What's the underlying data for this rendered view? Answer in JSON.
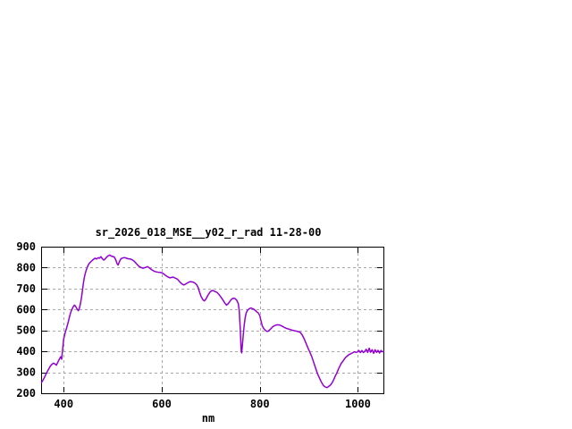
{
  "window": {
    "background": "#ffffff"
  },
  "chart_data": {
    "type": "line",
    "title": "sr_2026_018_MSE__y02_r_rad 11-28-00",
    "xlabel": "nm",
    "ylabel": "",
    "xlim": [
      354,
      1052
    ],
    "ylim": [
      200,
      900
    ],
    "x_ticks": [
      400,
      600,
      800,
      1000
    ],
    "y_ticks": [
      200,
      300,
      400,
      500,
      600,
      700,
      800,
      900
    ],
    "grid": true,
    "legend": "none",
    "colors": {
      "line": "#9400d3",
      "grid": "#a8a8a8",
      "border": "#000000",
      "text": "#000000"
    },
    "series": [
      {
        "name": "sr_2026_018_MSE__y02_r_rad 11-28-00",
        "points": [
          [
            355,
            252
          ],
          [
            358,
            263
          ],
          [
            361,
            276
          ],
          [
            364,
            292
          ],
          [
            367,
            305
          ],
          [
            370,
            318
          ],
          [
            373,
            330
          ],
          [
            376,
            338
          ],
          [
            379,
            344
          ],
          [
            382,
            340
          ],
          [
            385,
            334
          ],
          [
            388,
            348
          ],
          [
            391,
            362
          ],
          [
            394,
            374
          ],
          [
            396,
            363
          ],
          [
            398,
            410
          ],
          [
            400,
            458
          ],
          [
            402,
            478
          ],
          [
            404,
            496
          ],
          [
            406,
            511
          ],
          [
            408,
            528
          ],
          [
            410,
            546
          ],
          [
            412,
            566
          ],
          [
            414,
            583
          ],
          [
            416,
            596
          ],
          [
            418,
            606
          ],
          [
            420,
            615
          ],
          [
            422,
            621
          ],
          [
            424,
            616
          ],
          [
            426,
            608
          ],
          [
            428,
            600
          ],
          [
            430,
            594
          ],
          [
            432,
            606
          ],
          [
            434,
            626
          ],
          [
            436,
            652
          ],
          [
            438,
            686
          ],
          [
            440,
            722
          ],
          [
            442,
            752
          ],
          [
            444,
            772
          ],
          [
            446,
            788
          ],
          [
            448,
            801
          ],
          [
            450,
            812
          ],
          [
            452,
            820
          ],
          [
            455,
            827
          ],
          [
            458,
            834
          ],
          [
            461,
            840
          ],
          [
            464,
            845
          ],
          [
            467,
            841
          ],
          [
            470,
            847
          ],
          [
            473,
            845
          ],
          [
            476,
            852
          ],
          [
            479,
            842
          ],
          [
            482,
            836
          ],
          [
            485,
            843
          ],
          [
            488,
            851
          ],
          [
            491,
            857
          ],
          [
            494,
            860
          ],
          [
            497,
            855
          ],
          [
            500,
            853
          ],
          [
            503,
            851
          ],
          [
            506,
            838
          ],
          [
            509,
            818
          ],
          [
            511,
            812
          ],
          [
            514,
            830
          ],
          [
            517,
            843
          ],
          [
            520,
            846
          ],
          [
            524,
            848
          ],
          [
            528,
            845
          ],
          [
            532,
            842
          ],
          [
            536,
            841
          ],
          [
            540,
            837
          ],
          [
            544,
            830
          ],
          [
            548,
            820
          ],
          [
            553,
            807
          ],
          [
            558,
            800
          ],
          [
            562,
            797
          ],
          [
            566,
            800
          ],
          [
            571,
            805
          ],
          [
            575,
            798
          ],
          [
            580,
            789
          ],
          [
            585,
            782
          ],
          [
            590,
            779
          ],
          [
            595,
            777
          ],
          [
            600,
            776
          ],
          [
            604,
            770
          ],
          [
            608,
            762
          ],
          [
            613,
            755
          ],
          [
            617,
            751
          ],
          [
            620,
            753
          ],
          [
            623,
            755
          ],
          [
            627,
            750
          ],
          [
            632,
            745
          ],
          [
            636,
            734
          ],
          [
            641,
            722
          ],
          [
            645,
            717
          ],
          [
            649,
            722
          ],
          [
            653,
            728
          ],
          [
            658,
            733
          ],
          [
            662,
            732
          ],
          [
            666,
            729
          ],
          [
            671,
            719
          ],
          [
            674,
            706
          ],
          [
            677,
            684
          ],
          [
            680,
            663
          ],
          [
            684,
            646
          ],
          [
            687,
            641
          ],
          [
            690,
            650
          ],
          [
            694,
            668
          ],
          [
            698,
            682
          ],
          [
            702,
            691
          ],
          [
            706,
            689
          ],
          [
            710,
            685
          ],
          [
            714,
            679
          ],
          [
            718,
            668
          ],
          [
            722,
            655
          ],
          [
            726,
            641
          ],
          [
            729,
            629
          ],
          [
            732,
            621
          ],
          [
            735,
            627
          ],
          [
            738,
            636
          ],
          [
            741,
            646
          ],
          [
            744,
            652
          ],
          [
            747,
            654
          ],
          [
            750,
            651
          ],
          [
            753,
            644
          ],
          [
            756,
            628
          ],
          [
            758,
            595
          ],
          [
            760,
            510
          ],
          [
            762,
            400
          ],
          [
            763,
            393
          ],
          [
            764,
            420
          ],
          [
            766,
            475
          ],
          [
            768,
            525
          ],
          [
            770,
            560
          ],
          [
            772,
            583
          ],
          [
            775,
            597
          ],
          [
            778,
            603
          ],
          [
            782,
            607
          ],
          [
            785,
            604
          ],
          [
            788,
            601
          ],
          [
            791,
            595
          ],
          [
            794,
            589
          ],
          [
            797,
            583
          ],
          [
            800,
            570
          ],
          [
            802,
            550
          ],
          [
            805,
            521
          ],
          [
            808,
            509
          ],
          [
            812,
            499
          ],
          [
            815,
            495
          ],
          [
            818,
            498
          ],
          [
            822,
            507
          ],
          [
            826,
            517
          ],
          [
            830,
            523
          ],
          [
            835,
            527
          ],
          [
            840,
            526
          ],
          [
            845,
            521
          ],
          [
            850,
            514
          ],
          [
            855,
            509
          ],
          [
            860,
            506
          ],
          [
            866,
            501
          ],
          [
            872,
            498
          ],
          [
            877,
            495
          ],
          [
            882,
            492
          ],
          [
            886,
            480
          ],
          [
            890,
            462
          ],
          [
            894,
            440
          ],
          [
            898,
            417
          ],
          [
            902,
            396
          ],
          [
            906,
            374
          ],
          [
            910,
            346
          ],
          [
            914,
            318
          ],
          [
            918,
            291
          ],
          [
            922,
            270
          ],
          [
            926,
            251
          ],
          [
            930,
            236
          ],
          [
            934,
            229
          ],
          [
            937,
            227
          ],
          [
            940,
            232
          ],
          [
            944,
            239
          ],
          [
            948,
            252
          ],
          [
            951,
            267
          ],
          [
            954,
            283
          ],
          [
            957,
            297
          ],
          [
            960,
            314
          ],
          [
            963,
            329
          ],
          [
            966,
            343
          ],
          [
            969,
            352
          ],
          [
            972,
            362
          ],
          [
            975,
            371
          ],
          [
            978,
            377
          ],
          [
            981,
            383
          ],
          [
            984,
            387
          ],
          [
            987,
            391
          ],
          [
            990,
            394
          ],
          [
            993,
            398
          ],
          [
            996,
            395
          ],
          [
            999,
            397
          ],
          [
            1002,
            404
          ],
          [
            1005,
            394
          ],
          [
            1008,
            404
          ],
          [
            1011,
            394
          ],
          [
            1014,
            400
          ],
          [
            1017,
            410
          ],
          [
            1020,
            395
          ],
          [
            1023,
            415
          ],
          [
            1026,
            396
          ],
          [
            1029,
            408
          ],
          [
            1032,
            391
          ],
          [
            1035,
            408
          ],
          [
            1038,
            395
          ],
          [
            1041,
            405
          ],
          [
            1044,
            392
          ],
          [
            1047,
            404
          ],
          [
            1050,
            398
          ],
          [
            1052,
            399
          ]
        ]
      }
    ]
  }
}
